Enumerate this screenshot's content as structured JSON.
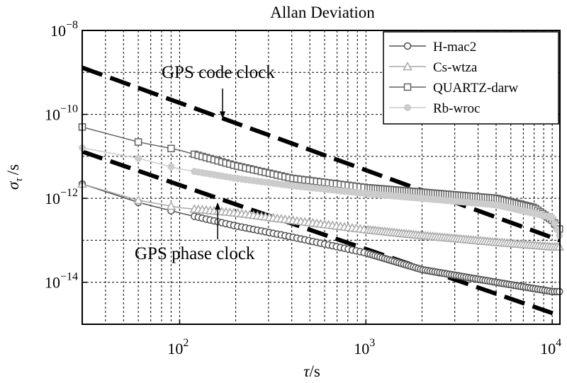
{
  "chart_data": {
    "type": "line",
    "title": "Allan Deviation",
    "xlabel_sym": "τ",
    "xlabel_unit": "/s",
    "ylabel_sym": "σ",
    "ylabel_sub": "τ",
    "ylabel_unit": "/s",
    "x_scale": "log",
    "y_scale": "log",
    "xlim": [
      30,
      11000
    ],
    "ylim": [
      1e-15,
      1e-08
    ],
    "grid": true,
    "legend_position": "top-right",
    "x_ticks": [
      {
        "value": 100,
        "base": "10",
        "exp": "2"
      },
      {
        "value": 1000,
        "base": "10",
        "exp": "3"
      },
      {
        "value": 10000,
        "base": "10",
        "exp": "4"
      }
    ],
    "y_ticks": [
      {
        "value": 1e-08,
        "base": "10",
        "exp": "−8"
      },
      {
        "value": 1e-10,
        "base": "10",
        "exp": "−10"
      },
      {
        "value": 1e-12,
        "base": "10",
        "exp": "−12"
      },
      {
        "value": 1e-14,
        "base": "10",
        "exp": "−14"
      }
    ],
    "series": [
      {
        "name": "H-mac2",
        "color": "#505050",
        "marker": "circle",
        "x": [
          30,
          60,
          100,
          200,
          400,
          1000,
          2000,
          5000,
          10000,
          11000
        ],
        "y": [
          2.2e-12,
          8e-13,
          4.5e-13,
          2.2e-13,
          1.2e-13,
          5e-14,
          2e-14,
          1e-14,
          6e-15,
          6e-15
        ]
      },
      {
        "name": "Cs-wtza",
        "color": "#a8a8a8",
        "marker": "triangle",
        "x": [
          30,
          60,
          100,
          200,
          400,
          1000,
          2000,
          5000,
          10000,
          11000
        ],
        "y": [
          2.2e-12,
          9e-13,
          6e-13,
          4.5e-13,
          3e-13,
          1.8e-13,
          1.3e-13,
          9e-14,
          7e-14,
          7e-14
        ]
      },
      {
        "name": "QUARTZ-darw",
        "color": "#606060",
        "marker": "square",
        "x": [
          30,
          60,
          100,
          200,
          400,
          1000,
          2000,
          5000,
          8000,
          10000,
          11000
        ],
        "y": [
          5e-11,
          2.2e-11,
          1.4e-11,
          6e-12,
          3e-12,
          1.8e-12,
          1.4e-12,
          1e-12,
          6e-13,
          3e-13,
          1.8e-13
        ]
      },
      {
        "name": "Rb-wroc",
        "color": "#cccccc",
        "marker": "dot",
        "x": [
          30,
          60,
          100,
          200,
          400,
          1000,
          2000,
          5000,
          10000,
          11000
        ],
        "y": [
          1.6e-11,
          9e-12,
          5e-12,
          3e-12,
          2e-12,
          1.3e-12,
          1e-12,
          7e-13,
          3.5e-13,
          1.2e-13
        ]
      }
    ],
    "reference_lines": [
      {
        "label": "GPS code clock",
        "x": [
          30,
          11000
        ],
        "y": [
          1.3e-09,
          1e-13
        ]
      },
      {
        "label": "GPS phase clock",
        "x": [
          30,
          11000
        ],
        "y": [
          1.3e-11,
          1.6e-15
        ]
      }
    ],
    "annotations": [
      {
        "text": "GPS code clock",
        "arrow_to_x": 170,
        "arrow_to_y": 8e-11
      },
      {
        "text": "GPS phase clock",
        "arrow_to_x": 160,
        "arrow_to_y": 8e-13
      }
    ]
  }
}
